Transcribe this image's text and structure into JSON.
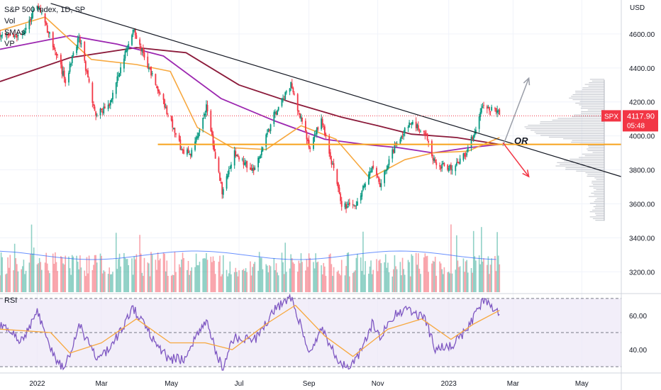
{
  "chart_data": [
    {
      "type": "candlestick",
      "title": "S&P 500 Index, 1D, SP",
      "indicators": [
        "Vol",
        "SMAs",
        "VP"
      ],
      "currency": "USD",
      "last_price": {
        "symbol": "SPX",
        "value": "4117.90",
        "countdown": "05:48",
        "color": "#f23645"
      },
      "y_ticks": [
        "4600.00",
        "4400.00",
        "4200.00",
        "4000.00",
        "3800.00",
        "3600.00",
        "3400.00",
        "3200.00"
      ],
      "y_tick_values": [
        4600,
        4400,
        4200,
        4000,
        3800,
        3600,
        3400,
        3200
      ],
      "ylim": [
        3080,
        4800
      ],
      "x_ticks": [
        "2022",
        "Mar",
        "May",
        "Jul",
        "Sep",
        "Nov",
        "2023",
        "Mar",
        "May"
      ],
      "x_tick_dates": [
        "2022-01-03",
        "2022-03-01",
        "2022-05-02",
        "2022-07-01",
        "2022-09-01",
        "2022-11-01",
        "2023-01-03",
        "2023-03-01",
        "2023-05-01"
      ],
      "xlim": [
        "2021-12-01",
        "2023-06-05"
      ],
      "price_path": [
        [
          "2021-12-01",
          4600
        ],
        [
          "2021-12-20",
          4580
        ],
        [
          "2022-01-03",
          4780
        ],
        [
          "2022-01-20",
          4490
        ],
        [
          "2022-01-28",
          4320
        ],
        [
          "2022-02-09",
          4590
        ],
        [
          "2022-02-24",
          4120
        ],
        [
          "2022-03-08",
          4180
        ],
        [
          "2022-03-29",
          4630
        ],
        [
          "2022-04-12",
          4400
        ],
        [
          "2022-04-29",
          4130
        ],
        [
          "2022-05-12",
          3900
        ],
        [
          "2022-05-20",
          3900
        ],
        [
          "2022-06-02",
          4170
        ],
        [
          "2022-06-16",
          3670
        ],
        [
          "2022-06-27",
          3900
        ],
        [
          "2022-07-14",
          3790
        ],
        [
          "2022-08-01",
          4120
        ],
        [
          "2022-08-16",
          4300
        ],
        [
          "2022-09-02",
          3920
        ],
        [
          "2022-09-12",
          4110
        ],
        [
          "2022-09-30",
          3590
        ],
        [
          "2022-10-12",
          3580
        ],
        [
          "2022-10-27",
          3810
        ],
        [
          "2022-11-03",
          3720
        ],
        [
          "2022-11-18",
          3970
        ],
        [
          "2022-12-01",
          4080
        ],
        [
          "2022-12-13",
          4020
        ],
        [
          "2022-12-22",
          3830
        ],
        [
          "2023-01-05",
          3810
        ],
        [
          "2023-01-19",
          3900
        ],
        [
          "2023-02-02",
          4170
        ],
        [
          "2023-02-07",
          4160
        ],
        [
          "2023-02-15",
          4150
        ],
        [
          "2023-02-17",
          4118
        ]
      ],
      "sma_short": [
        [
          "2021-12-01",
          4620
        ],
        [
          "2022-01-10",
          4700
        ],
        [
          "2022-02-20",
          4450
        ],
        [
          "2022-04-01",
          4420
        ],
        [
          "2022-05-01",
          4380
        ],
        [
          "2022-05-25",
          4050
        ],
        [
          "2022-06-25",
          3930
        ],
        [
          "2022-07-25",
          3920
        ],
        [
          "2022-08-25",
          4060
        ],
        [
          "2022-09-25",
          3980
        ],
        [
          "2022-10-25",
          3750
        ],
        [
          "2022-11-25",
          3860
        ],
        [
          "2022-12-20",
          3900
        ],
        [
          "2023-01-20",
          3910
        ],
        [
          "2023-02-17",
          3990
        ]
      ],
      "sma_mid": [
        [
          "2021-12-01",
          4510
        ],
        [
          "2022-02-01",
          4590
        ],
        [
          "2022-03-15",
          4540
        ],
        [
          "2022-04-25",
          4470
        ],
        [
          "2022-06-15",
          4220
        ],
        [
          "2022-08-01",
          4090
        ],
        [
          "2022-09-15",
          3980
        ],
        [
          "2022-10-20",
          3950
        ],
        [
          "2022-11-20",
          3930
        ],
        [
          "2022-12-20",
          3900
        ],
        [
          "2023-01-20",
          3930
        ],
        [
          "2023-02-17",
          3950
        ]
      ],
      "sma_long": [
        [
          "2021-12-01",
          4320
        ],
        [
          "2022-02-01",
          4460
        ],
        [
          "2022-04-01",
          4520
        ],
        [
          "2022-05-15",
          4490
        ],
        [
          "2022-07-01",
          4300
        ],
        [
          "2022-08-15",
          4200
        ],
        [
          "2022-09-30",
          4110
        ],
        [
          "2022-11-01",
          4060
        ],
        [
          "2022-12-01",
          4010
        ],
        [
          "2023-01-10",
          3990
        ],
        [
          "2023-02-17",
          3950
        ]
      ],
      "trendline": [
        [
          "2022-01-15",
          4780
        ],
        [
          "2023-06-05",
          3760
        ]
      ],
      "horizontal_level": 3950,
      "annotation": {
        "text": "OR",
        "price": 3960,
        "date": "2023-03-02"
      },
      "projection_up": [
        [
          "2023-02-20",
          3940
        ],
        [
          "2023-03-15",
          4340
        ]
      ],
      "projection_down": [
        [
          "2023-02-20",
          3960
        ],
        [
          "2023-03-15",
          3760
        ]
      ],
      "volume_profile": {
        "price_from": 3500,
        "price_to": 4330,
        "shape": "peak near 4000–4100, secondary near 3820"
      },
      "colors": {
        "up": "#089981",
        "down": "#f23645",
        "sma_short": "#f7a83f",
        "sma_mid": "#9c27b0",
        "sma_long": "#8b1a3a",
        "level": "#f7a21b",
        "trend": "#131722",
        "arrow_up": "#9a9ea8",
        "arrow_down": "#f23645",
        "volume_ma": "#2962ff",
        "profile": "#b2b5be"
      }
    },
    {
      "type": "line",
      "title": "RSI",
      "y_ticks": [
        "60.00",
        "40.00"
      ],
      "y_tick_values": [
        60,
        40
      ],
      "ylim": [
        28,
        72
      ],
      "bands": [
        30,
        50,
        70
      ],
      "rsi_path": [
        [
          "2021-12-01",
          55
        ],
        [
          "2021-12-20",
          45
        ],
        [
          "2022-01-03",
          62
        ],
        [
          "2022-01-20",
          32
        ],
        [
          "2022-01-28",
          30
        ],
        [
          "2022-02-09",
          55
        ],
        [
          "2022-02-24",
          36
        ],
        [
          "2022-03-08",
          40
        ],
        [
          "2022-03-29",
          64
        ],
        [
          "2022-04-12",
          50
        ],
        [
          "2022-04-29",
          35
        ],
        [
          "2022-05-12",
          34
        ],
        [
          "2022-06-02",
          56
        ],
        [
          "2022-06-16",
          29
        ],
        [
          "2022-06-27",
          48
        ],
        [
          "2022-07-14",
          45
        ],
        [
          "2022-08-01",
          63
        ],
        [
          "2022-08-16",
          71
        ],
        [
          "2022-09-02",
          38
        ],
        [
          "2022-09-12",
          53
        ],
        [
          "2022-09-30",
          30
        ],
        [
          "2022-10-12",
          33
        ],
        [
          "2022-10-27",
          55
        ],
        [
          "2022-11-03",
          48
        ],
        [
          "2022-11-18",
          62
        ],
        [
          "2022-12-01",
          63
        ],
        [
          "2022-12-13",
          58
        ],
        [
          "2022-12-22",
          40
        ],
        [
          "2023-01-05",
          42
        ],
        [
          "2023-01-19",
          52
        ],
        [
          "2023-02-02",
          68
        ],
        [
          "2023-02-07",
          67
        ],
        [
          "2023-02-17",
          60
        ]
      ],
      "rsi_ma_path": [
        [
          "2021-12-01",
          52
        ],
        [
          "2022-01-15",
          50
        ],
        [
          "2022-02-01",
          38
        ],
        [
          "2022-03-01",
          44
        ],
        [
          "2022-04-01",
          58
        ],
        [
          "2022-05-01",
          44
        ],
        [
          "2022-06-01",
          44
        ],
        [
          "2022-06-25",
          40
        ],
        [
          "2022-07-25",
          55
        ],
        [
          "2022-08-20",
          66
        ],
        [
          "2022-09-15",
          48
        ],
        [
          "2022-10-10",
          36
        ],
        [
          "2022-11-10",
          52
        ],
        [
          "2022-12-10",
          58
        ],
        [
          "2023-01-05",
          46
        ],
        [
          "2023-01-25",
          55
        ],
        [
          "2023-02-17",
          63
        ]
      ],
      "colors": {
        "rsi": "#7e57c2",
        "rsi_ma": "#f7a83f",
        "band_fill": "#ede7f6"
      }
    }
  ]
}
